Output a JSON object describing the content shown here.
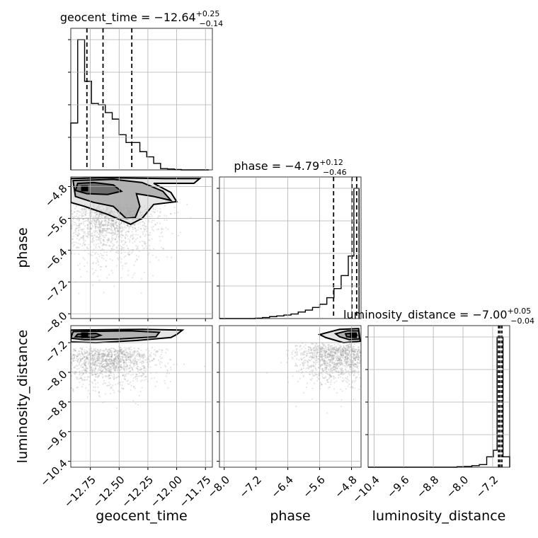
{
  "chart_data": {
    "type": "corner",
    "parameters": [
      {
        "key": "geocent_time",
        "label": "geocent_time",
        "title_main": "geocent_time = −12.64",
        "title_plus": "+0.25",
        "title_minus": "−0.14",
        "range": [
          -12.92,
          -11.69
        ],
        "ticks": [
          {
            "value": -12.75,
            "label": "−12.75"
          },
          {
            "value": -12.5,
            "label": "−12.50"
          },
          {
            "value": -12.25,
            "label": "−12.25"
          },
          {
            "value": -12.0,
            "label": "−12.00"
          },
          {
            "value": -11.75,
            "label": "−11.75"
          }
        ],
        "quantiles": [
          -12.78,
          -12.64,
          -12.39
        ],
        "histogram": {
          "edges": [
            -12.92,
            -12.86,
            -12.8,
            -12.74,
            -12.68,
            -12.62,
            -12.56,
            -12.5,
            -12.44,
            -12.38,
            -12.32,
            -12.26,
            -12.2,
            -12.14,
            -12.08,
            -12.02,
            -11.96,
            -11.9,
            -11.84,
            -11.78,
            -11.72
          ],
          "counts": [
            0.36,
            1.0,
            0.68,
            0.51,
            0.5,
            0.44,
            0.39,
            0.27,
            0.21,
            0.21,
            0.14,
            0.1,
            0.05,
            0.01,
            0.007,
            0.003,
            0.0,
            0.0,
            0.0,
            0.0
          ]
        }
      },
      {
        "key": "phase",
        "label": "phase",
        "title_main": "phase = −4.79",
        "title_plus": "+0.12",
        "title_minus": "−0.46",
        "range": [
          -8.12,
          -4.56
        ],
        "ticks": [
          {
            "value": -8.0,
            "label": "−8.0"
          },
          {
            "value": -7.2,
            "label": "−7.2"
          },
          {
            "value": -6.4,
            "label": "−6.4"
          },
          {
            "value": -5.6,
            "label": "−5.6"
          },
          {
            "value": -4.8,
            "label": "−4.8"
          }
        ],
        "quantiles": [
          -5.25,
          -4.79,
          -4.67
        ],
        "histogram": {
          "edges": [
            -8.12,
            -7.94,
            -7.76,
            -7.58,
            -7.4,
            -7.22,
            -7.04,
            -6.86,
            -6.68,
            -6.5,
            -6.32,
            -6.14,
            -5.96,
            -5.78,
            -5.6,
            -5.42,
            -5.24,
            -5.06,
            -4.88,
            -4.74,
            -4.61
          ],
          "counts": [
            0.0,
            0.0,
            0.0,
            0.0,
            0.0,
            0.003,
            0.008,
            0.015,
            0.02,
            0.027,
            0.035,
            0.05,
            0.065,
            0.085,
            0.11,
            0.16,
            0.23,
            0.33,
            0.48,
            1.0
          ]
        }
      },
      {
        "key": "luminosity_distance",
        "label": "luminosity_distance",
        "title_main": "luminosity_distance = −7.00",
        "title_plus": "+0.05",
        "title_minus": "−0.04",
        "range": [
          -10.56,
          -6.74
        ],
        "ticks": [
          {
            "value": -10.4,
            "label": "−10.4"
          },
          {
            "value": -9.6,
            "label": "−9.6"
          },
          {
            "value": -8.8,
            "label": "−8.8"
          },
          {
            "value": -8.0,
            "label": "−8.0"
          },
          {
            "value": -7.2,
            "label": "−7.2"
          }
        ],
        "quantiles": [
          -7.04,
          -7.0,
          -6.95
        ],
        "histogram": {
          "edges": [
            -10.56,
            -10.36,
            -10.16,
            -9.96,
            -9.76,
            -9.56,
            -9.36,
            -9.16,
            -8.96,
            -8.76,
            -8.56,
            -8.36,
            -8.16,
            -7.96,
            -7.76,
            -7.56,
            -7.36,
            -7.18,
            -7.08,
            -6.92,
            -6.74
          ],
          "counts": [
            0.0,
            0.0,
            0.0,
            0.0,
            0.0,
            0.0,
            0.0,
            0.0,
            0.0,
            0.0,
            0.0,
            0.0,
            0.004,
            0.006,
            0.012,
            0.02,
            0.08,
            0.13,
            1.0,
            0.08
          ]
        }
      }
    ],
    "pairs": [
      {
        "x": "geocent_time",
        "y": "phase",
        "peak": [
          -12.8,
          -4.85
        ],
        "contours": [
          [
            [
              -12.86,
              -4.72
            ],
            [
              -12.72,
              -4.7
            ],
            [
              -12.55,
              -4.76
            ],
            [
              -12.48,
              -4.92
            ],
            [
              -12.6,
              -5.0
            ],
            [
              -12.78,
              -4.98
            ],
            [
              -12.88,
              -4.9
            ]
          ],
          [
            [
              -12.9,
              -4.65
            ],
            [
              -12.55,
              -4.62
            ],
            [
              -12.3,
              -4.7
            ],
            [
              -12.12,
              -4.92
            ],
            [
              -12.05,
              -5.15
            ],
            [
              -12.2,
              -5.05
            ],
            [
              -12.35,
              -4.98
            ],
            [
              -12.32,
              -5.3
            ],
            [
              -12.36,
              -5.58
            ],
            [
              -12.44,
              -5.6
            ],
            [
              -12.55,
              -5.3
            ],
            [
              -12.72,
              -5.2
            ],
            [
              -12.88,
              -5.05
            ]
          ],
          [
            [
              -12.92,
              -4.6
            ],
            [
              -12.6,
              -4.58
            ],
            [
              -12.1,
              -4.6
            ],
            [
              -11.8,
              -4.6
            ],
            [
              -11.85,
              -4.72
            ],
            [
              -12.2,
              -4.72
            ],
            [
              -12.05,
              -4.95
            ],
            [
              -12.0,
              -5.18
            ],
            [
              -12.2,
              -5.25
            ],
            [
              -12.3,
              -5.6
            ],
            [
              -12.4,
              -5.75
            ],
            [
              -12.6,
              -5.5
            ],
            [
              -12.8,
              -5.3
            ],
            [
              -12.92,
              -5.2
            ]
          ]
        ],
        "samples": {
          "n": 1400,
          "center": [
            -12.6,
            -5.3
          ],
          "spread": [
            0.22,
            0.65
          ],
          "color": "#888888"
        }
      },
      {
        "x": "geocent_time",
        "y": "luminosity_distance",
        "peak": [
          -12.8,
          -7.0
        ],
        "contours": [
          [
            [
              -12.86,
              -6.97
            ],
            [
              -12.7,
              -6.95
            ],
            [
              -12.66,
              -7.0
            ],
            [
              -12.72,
              -7.06
            ],
            [
              -12.88,
              -7.04
            ]
          ],
          [
            [
              -12.9,
              -6.9
            ],
            [
              -12.4,
              -6.88
            ],
            [
              -12.15,
              -6.92
            ],
            [
              -12.18,
              -7.04
            ],
            [
              -12.5,
              -7.1
            ],
            [
              -12.8,
              -7.12
            ],
            [
              -12.92,
              -7.08
            ]
          ],
          [
            [
              -12.92,
              -6.86
            ],
            [
              -12.3,
              -6.84
            ],
            [
              -11.95,
              -6.86
            ],
            [
              -12.0,
              -6.98
            ],
            [
              -12.05,
              -7.06
            ],
            [
              -12.35,
              -7.14
            ],
            [
              -12.7,
              -7.2
            ],
            [
              -12.92,
              -7.18
            ]
          ]
        ],
        "samples": {
          "n": 1400,
          "center": [
            -12.6,
            -7.4
          ],
          "spread": [
            0.22,
            0.45
          ],
          "color": "#888888"
        }
      },
      {
        "x": "phase",
        "y": "luminosity_distance",
        "peak": [
          -4.75,
          -7.0
        ],
        "contours": [
          [
            [
              -4.95,
              -6.96
            ],
            [
              -4.7,
              -6.94
            ],
            [
              -4.66,
              -7.0
            ],
            [
              -4.72,
              -7.06
            ],
            [
              -4.92,
              -7.04
            ]
          ],
          [
            [
              -5.2,
              -6.96
            ],
            [
              -4.9,
              -6.88
            ],
            [
              -4.62,
              -6.88
            ],
            [
              -4.6,
              -7.1
            ],
            [
              -4.85,
              -7.12
            ],
            [
              -5.1,
              -7.04
            ]
          ],
          [
            [
              -5.6,
              -6.98
            ],
            [
              -5.1,
              -6.84
            ],
            [
              -4.62,
              -6.82
            ],
            [
              -4.58,
              -7.16
            ],
            [
              -5.0,
              -7.2
            ],
            [
              -5.45,
              -7.06
            ]
          ]
        ],
        "samples": {
          "n": 1400,
          "center": [
            -5.1,
            -7.3
          ],
          "spread": [
            0.55,
            0.45
          ],
          "color": "#888888"
        }
      }
    ],
    "grid": true
  }
}
